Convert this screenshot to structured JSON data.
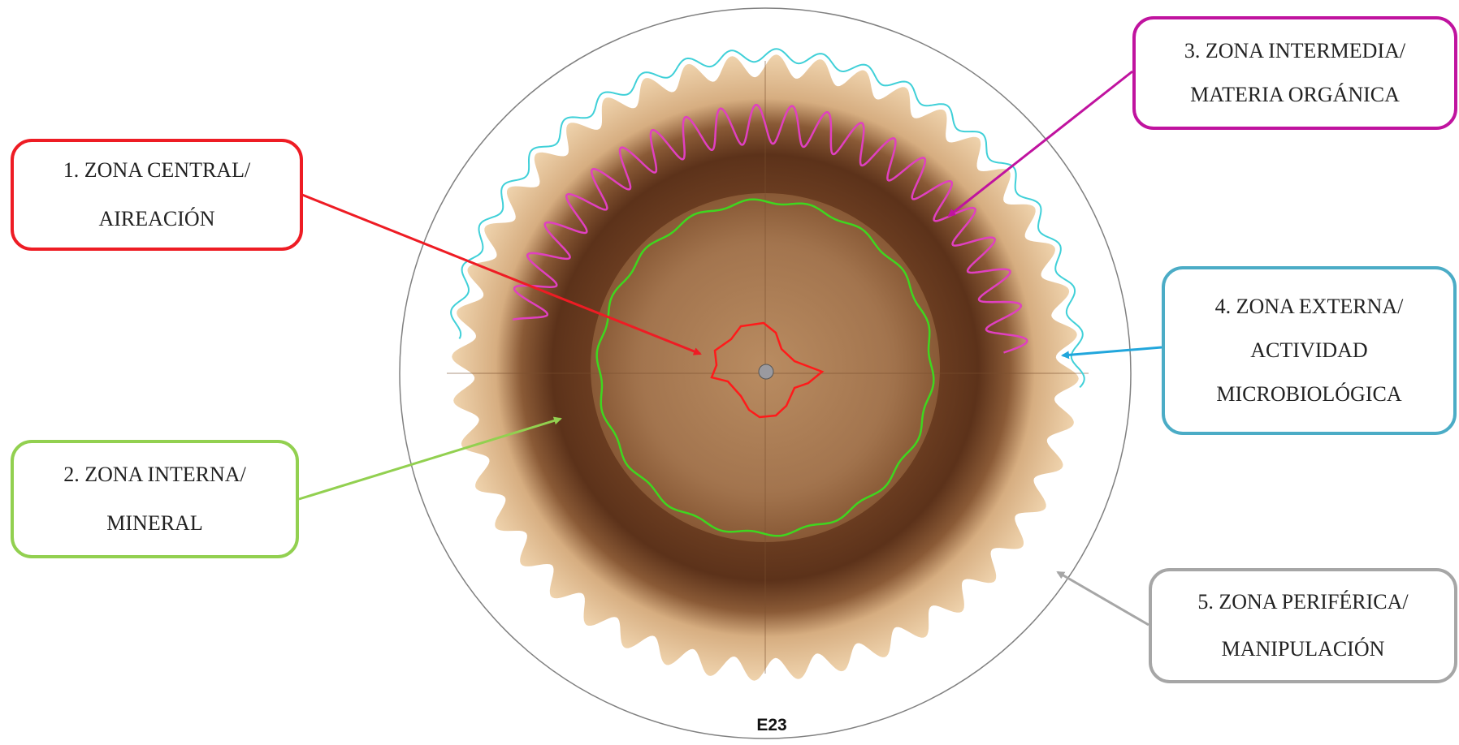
{
  "figure": {
    "caption": "E23"
  },
  "zones": [
    {
      "id": "zone-1",
      "line1": "1. ZONA CENTRAL/",
      "line2": "AIREACIÓN",
      "line3": "",
      "color": "#ee1c24"
    },
    {
      "id": "zone-2",
      "line1": "2. ZONA INTERNA/",
      "line2": "MINERAL",
      "line3": "",
      "color": "#92d050"
    },
    {
      "id": "zone-3",
      "line1": "3. ZONA INTERMEDIA/",
      "line2": "MATERIA ORGÁNICA",
      "line3": "",
      "color": "#c0139f"
    },
    {
      "id": "zone-4",
      "line1": "4. ZONA EXTERNA/",
      "line2": "ACTIVIDAD",
      "line3": "MICROBIOLÓGICA",
      "color": "#4bacc6"
    },
    {
      "id": "zone-5",
      "line1": "5. ZONA PERIFÉRICA/",
      "line2": "MANIPULACIÓN",
      "line3": "",
      "color": "#a6a6a6"
    }
  ],
  "contour_colors": {
    "central": "#ff1a1a",
    "interna": "#3fd61f",
    "intermedia": "#e040c0",
    "externa": "#40d0d8"
  },
  "paper_colors": {
    "outer_ring": "#e8c59a",
    "dark_band": "#6e3f22",
    "inner_disc": "#9a6a42",
    "center": "#b58963"
  }
}
